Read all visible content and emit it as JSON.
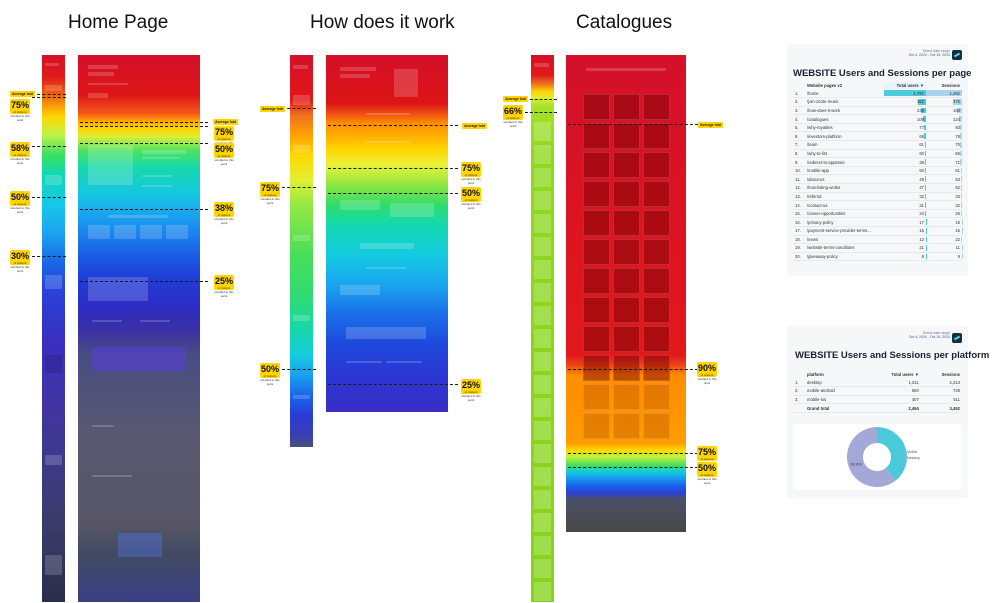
{
  "columns": {
    "home": {
      "title": "Home Page"
    },
    "how": {
      "title": "How does it work"
    },
    "catalogues": {
      "title": "Catalogues"
    }
  },
  "heatmap_labels": {
    "avg_fold": "Average fold",
    "scroll_reached": "of visitors scrolled to this point"
  },
  "home_markers": [
    {
      "side": "left",
      "pct": "75%",
      "depth": 0.18
    },
    {
      "side": "left",
      "pct": "58%",
      "depth": 0.17
    },
    {
      "side": "left",
      "pct": "50%",
      "depth": 0.28
    },
    {
      "side": "left",
      "pct": "30%",
      "depth": 0.37
    },
    {
      "side": "right",
      "pct": "75%",
      "depth": 0.14
    },
    {
      "side": "right",
      "pct": "50%",
      "depth": 0.17
    },
    {
      "side": "right",
      "pct": "38%",
      "depth": 0.28
    },
    {
      "side": "right",
      "pct": "25%",
      "depth": 0.41
    }
  ],
  "how_markers": [
    {
      "pct": "75%",
      "depth": 0.24
    },
    {
      "pct": "50%",
      "depth": 0.27
    },
    {
      "pct": "75%",
      "depth": 0.27
    },
    {
      "pct": "50%",
      "depth": 0.58
    },
    {
      "pct": "25%",
      "depth": 0.59
    }
  ],
  "catalogue_markers": [
    {
      "pct": "66%",
      "depth": 0.13
    },
    {
      "pct": "90%",
      "depth": 0.62
    },
    {
      "pct": "75%",
      "depth": 0.77
    },
    {
      "pct": "50%",
      "depth": 0.8
    }
  ],
  "pages_panel": {
    "meta_line1": "Select date range",
    "date_range": "Oct 4, 2024 - Oct 19, 2024",
    "title": "WEBSITE Users and Sessions per page",
    "columns": [
      "Website pages v2",
      "Total users",
      "Sessions"
    ],
    "sort_indicator": "▼",
    "rows": [
      {
        "idx": "1.",
        "page": "/home",
        "users": "1,797",
        "sessions": "1,492"
      },
      {
        "idx": "2.",
        "page": "/join-zoote-music",
        "users": "362",
        "sessions": "376"
      },
      {
        "idx": "3.",
        "page": "/how-does-it-work",
        "users": "236",
        "sessions": "193"
      },
      {
        "idx": "4.",
        "page": "/catalogues",
        "users": "109",
        "sessions": "124"
      },
      {
        "idx": "5.",
        "page": "/why-royalties",
        "users": "77",
        "sessions": "93"
      },
      {
        "idx": "6.",
        "page": "/investors-platform",
        "users": "69",
        "sessions": "78"
      },
      {
        "idx": "7.",
        "page": "/team",
        "users": "61",
        "sessions": "70"
      },
      {
        "idx": "8.",
        "page": "/why-to-list",
        "users": "60",
        "sessions": "65"
      },
      {
        "idx": "9.",
        "page": "/redirect-to-appstore",
        "users": "38",
        "sessions": "71"
      },
      {
        "idx": "10.",
        "page": "/mobile-app",
        "users": "50",
        "sessions": "61"
      },
      {
        "idx": "11.",
        "page": "/about-us",
        "users": "49",
        "sessions": "53"
      },
      {
        "idx": "12.",
        "page": "/how-listing-works",
        "users": "47",
        "sessions": "52"
      },
      {
        "idx": "13.",
        "page": "/referral",
        "users": "32",
        "sessions": "33"
      },
      {
        "idx": "14.",
        "page": "/contact-us",
        "users": "31",
        "sessions": "32"
      },
      {
        "idx": "15.",
        "page": "/career-opportunities",
        "users": "24",
        "sessions": "26"
      },
      {
        "idx": "16.",
        "page": "/privacy-policy",
        "users": "17",
        "sessions": "18"
      },
      {
        "idx": "17.",
        "page": "/payment-service-provider-terms...",
        "users": "15",
        "sessions": "15"
      },
      {
        "idx": "18.",
        "page": "/news",
        "users": "12",
        "sessions": "22"
      },
      {
        "idx": "19.",
        "page": "/website-terms-conditions",
        "users": "21",
        "sessions": "11"
      },
      {
        "idx": "20.",
        "page": "/giveaway-policy",
        "users": "8",
        "sessions": "9"
      }
    ],
    "users_raw": [
      1797,
      362,
      236,
      109,
      77,
      69,
      61,
      60,
      38,
      50,
      49,
      47,
      32,
      31,
      24,
      17,
      15,
      12,
      21,
      8
    ],
    "sessions_raw": [
      1492,
      376,
      193,
      124,
      93,
      78,
      70,
      65,
      71,
      61,
      53,
      52,
      33,
      32,
      26,
      18,
      15,
      22,
      11,
      9
    ],
    "bar_color_users": "#4fc9dc",
    "bar_color_sessions": "#a9d4f0"
  },
  "platform_panel": {
    "meta_line1": "Select date range",
    "date_range": "Oct 4, 2024 - Oct 19, 2024",
    "title": "WEBSITE Users and Sessions per platform",
    "columns": [
      "platform",
      "Total users",
      "Sessions"
    ],
    "sort_indicator": "▼",
    "rows": [
      {
        "idx": "1.",
        "platform": "desktop",
        "users": "1,511",
        "sessions": "2,213"
      },
      {
        "idx": "2.",
        "platform": "mobile-android",
        "users": "580",
        "sessions": "728"
      },
      {
        "idx": "3.",
        "platform": "mobile-ios",
        "users": "407",
        "sessions": "511"
      }
    ],
    "total_label": "Grand total",
    "total_users": "2,494",
    "total_sessions": "3,452"
  },
  "chart_data": {
    "type": "pie",
    "categories": [
      "Mobile",
      "Desktop"
    ],
    "values": [
      39.4,
      60.6
    ],
    "value_labels": [
      "",
      "60.6%"
    ],
    "colors": [
      "#4cc9d9",
      "#a4a8d9"
    ],
    "legend_position": "right"
  }
}
